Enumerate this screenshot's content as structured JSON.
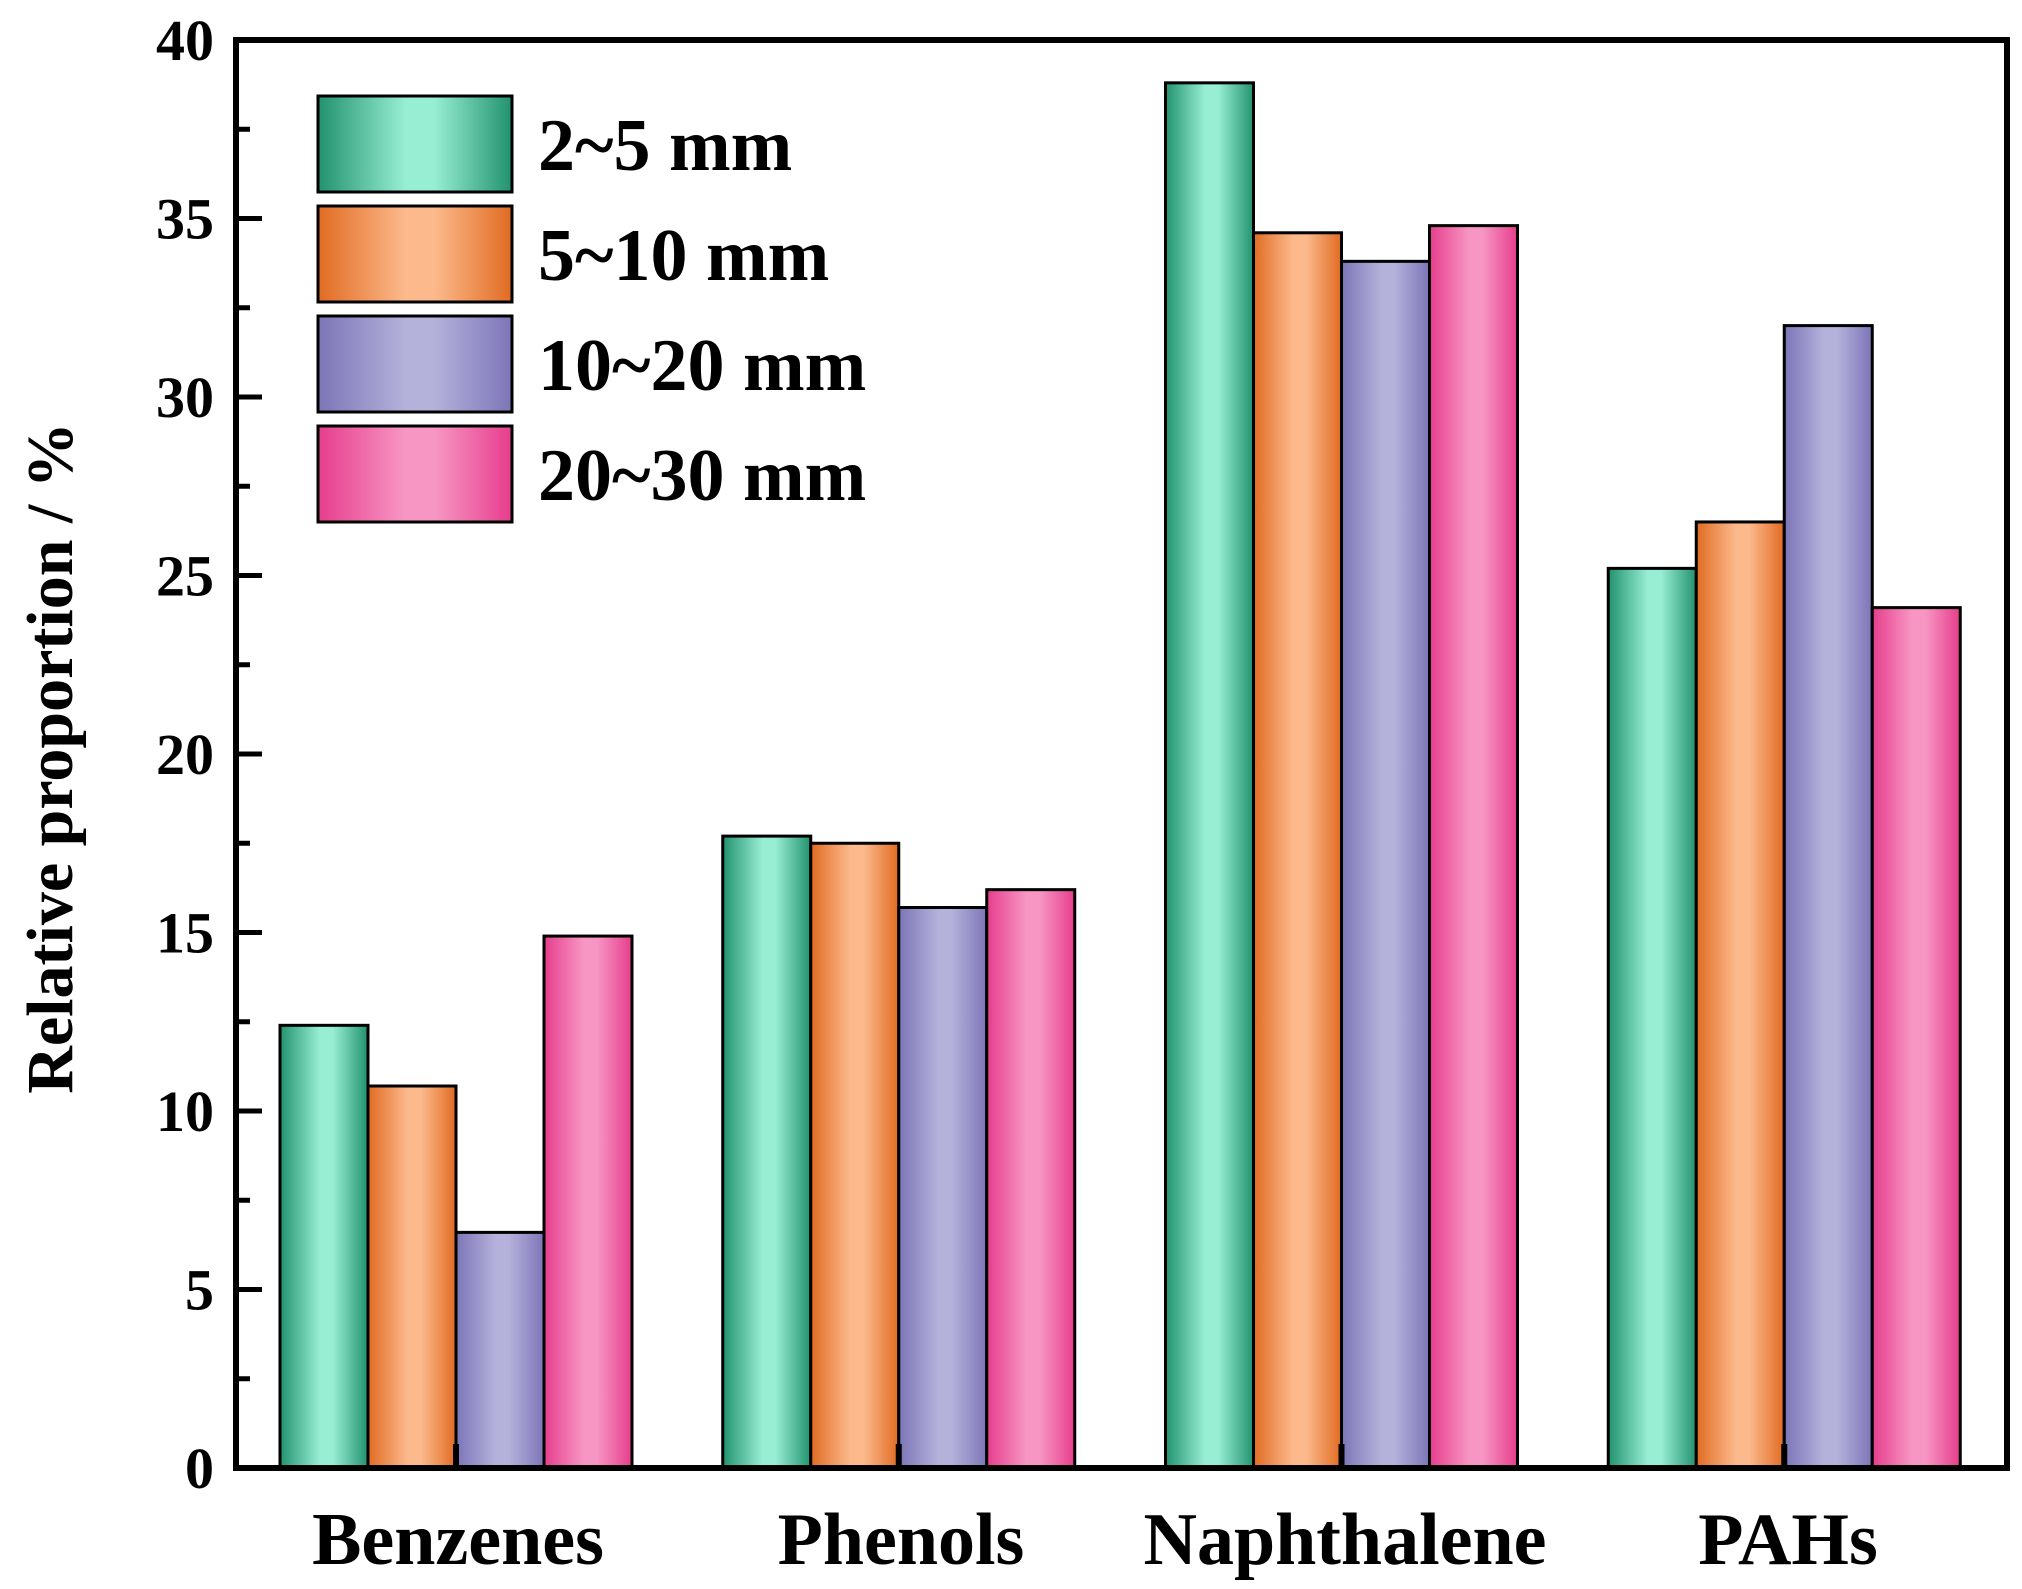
{
  "chart_data": {
    "type": "bar",
    "title": "",
    "xlabel": "",
    "ylabel": "Relative proportion / %",
    "ylim": [
      0,
      40
    ],
    "yticks": [
      0,
      5,
      10,
      15,
      20,
      25,
      30,
      35,
      40
    ],
    "categories": [
      "Benzenes",
      "Phenols",
      "Naphthalene",
      "PAHs"
    ],
    "series": [
      {
        "name": "2~5 mm",
        "values": [
          12.4,
          17.7,
          38.8,
          25.2
        ]
      },
      {
        "name": "5~10 mm",
        "values": [
          10.7,
          17.5,
          34.6,
          26.5
        ]
      },
      {
        "name": "10~20 mm",
        "values": [
          6.6,
          15.7,
          33.8,
          32.0
        ]
      },
      {
        "name": "20~30 mm",
        "values": [
          14.9,
          16.2,
          34.8,
          24.1
        ]
      }
    ],
    "legend_position": "top-left",
    "grid": false
  },
  "colors": {
    "series": [
      {
        "edge": "#22926E",
        "mid": "#97EED2"
      },
      {
        "edge": "#E06B22",
        "mid": "#FCB98C"
      },
      {
        "edge": "#7C75B7",
        "mid": "#B4B1DB"
      },
      {
        "edge": "#E63D8C",
        "mid": "#F796C3"
      }
    ],
    "axis": "#000000",
    "background": "#ffffff"
  }
}
